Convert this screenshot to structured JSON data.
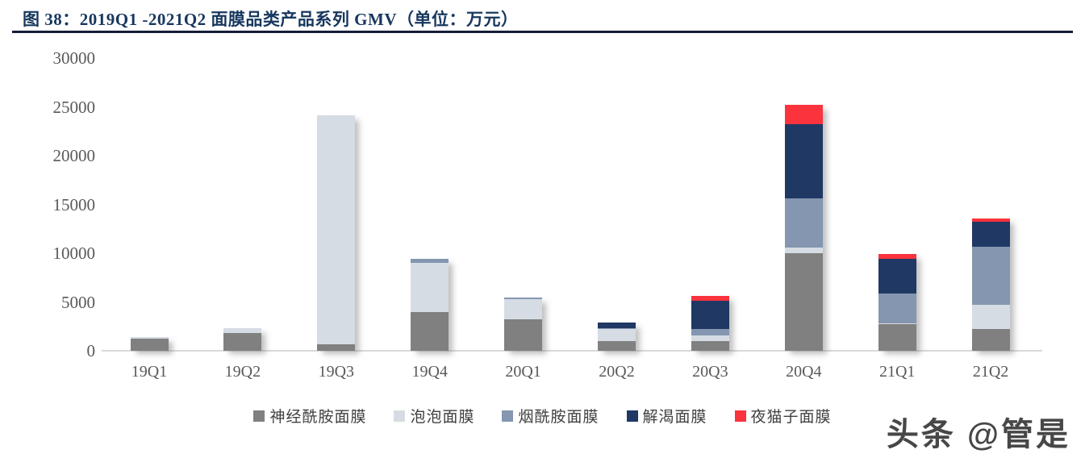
{
  "figure": {
    "title": "图 38：2019Q1 -2021Q2 面膜品类产品系列 GMV（单位：万元）",
    "watermark": "头条 @管是"
  },
  "colors": {
    "title": "#17375e",
    "rule": "#141d36",
    "axis_text": "#595959",
    "baseline": "#d9d9d9"
  },
  "chart_data": {
    "type": "bar",
    "stacked": true,
    "title": "2019Q1 -2021Q2 面膜品类产品系列 GMV",
    "unit": "万元",
    "categories": [
      "19Q1",
      "19Q2",
      "19Q3",
      "19Q4",
      "20Q1",
      "20Q2",
      "20Q3",
      "20Q4",
      "21Q1",
      "21Q2"
    ],
    "series": [
      {
        "name": "神经酰胺面膜",
        "color": "#808080",
        "values": [
          1250,
          1800,
          700,
          4000,
          3200,
          1000,
          1000,
          10000,
          2700,
          2200
        ]
      },
      {
        "name": "泡泡面膜",
        "color": "#d6dce4",
        "values": [
          150,
          500,
          23400,
          5000,
          2100,
          1200,
          550,
          550,
          100,
          2500
        ]
      },
      {
        "name": "烟酰胺面膜",
        "color": "#8496b0",
        "values": [
          0,
          0,
          0,
          400,
          150,
          100,
          650,
          5100,
          3100,
          6000
        ]
      },
      {
        "name": "解渴面膜",
        "color": "#1f3864",
        "values": [
          0,
          0,
          0,
          0,
          0,
          600,
          2900,
          7600,
          3500,
          2500
        ]
      },
      {
        "name": "夜猫子面膜",
        "color": "#fb333d",
        "values": [
          0,
          0,
          0,
          0,
          0,
          0,
          550,
          2000,
          500,
          350
        ]
      }
    ],
    "ylim": [
      0,
      30000
    ],
    "yticks": [
      0,
      5000,
      10000,
      15000,
      20000,
      25000,
      30000
    ],
    "xlabel": "",
    "ylabel": "",
    "grid": false,
    "legend_position": "bottom"
  }
}
